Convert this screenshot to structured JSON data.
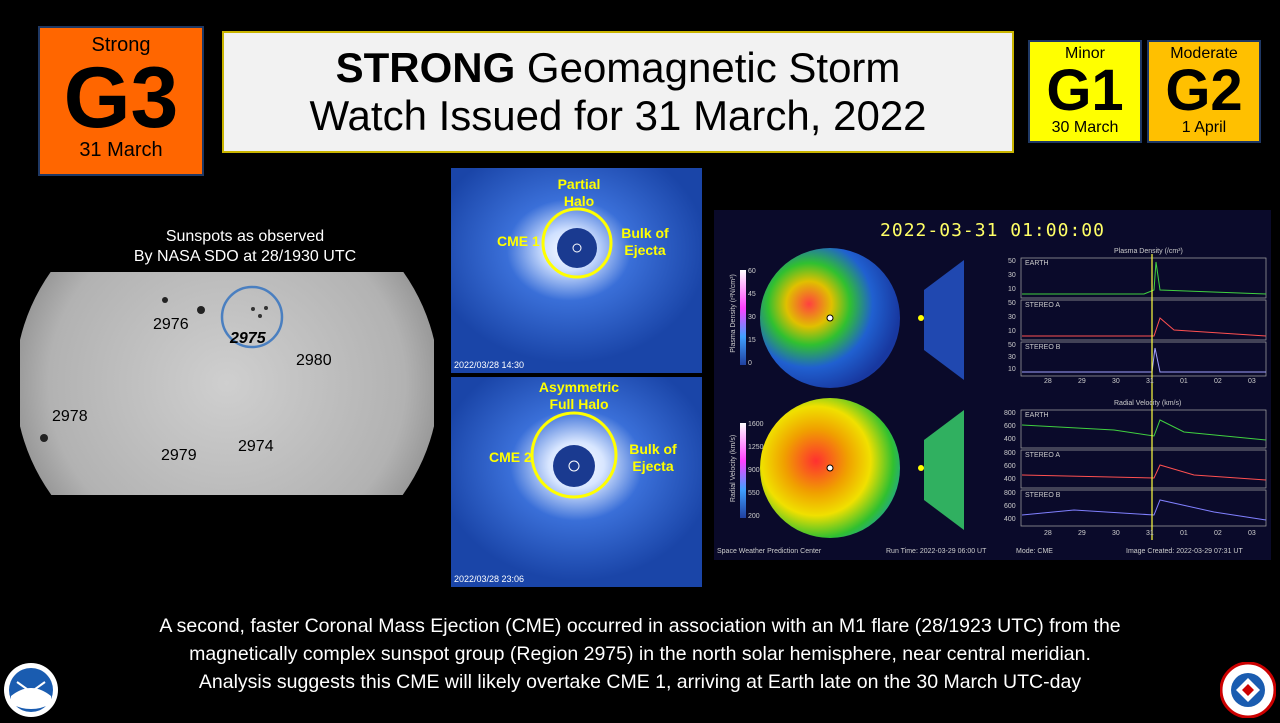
{
  "g3": {
    "level": "Strong",
    "code": "G3",
    "date": "31 March"
  },
  "title": {
    "strong": "STRONG",
    "line1_rest": " Geomagnetic Storm",
    "line2": "Watch Issued for 31 March, 2022"
  },
  "g1": {
    "level": "Minor",
    "code": "G1",
    "date": "30 March"
  },
  "g2": {
    "level": "Moderate",
    "code": "G2",
    "date": "1 April"
  },
  "sun": {
    "caption1": "Sunspots as observed",
    "caption2": "By NASA SDO at 28/1930 UTC",
    "regions": [
      "2976",
      "2975",
      "2980",
      "2978",
      "2979",
      "2974"
    ]
  },
  "coronagraph1": {
    "label_partial": "Partial",
    "label_halo": "Halo",
    "cme": "CME 1",
    "bulk1": "Bulk of",
    "bulk2": "Ejecta",
    "stamp": "2022/03/28 14:30"
  },
  "coronagraph2": {
    "label_asym": "Asymmetric",
    "label_full": "Full Halo",
    "cme": "CME 2",
    "bulk1": "Bulk of",
    "bulk2": "Ejecta",
    "stamp": "2022/03/28 23:06"
  },
  "model": {
    "time": "2022-03-31  01:00:00",
    "density_title": "Plasma Density (/cm³)",
    "velocity_title": "Radial Velocity (km/s)",
    "density_axis": "Plasma Density (r²N/cm³)",
    "velocity_axis": "Radial Velocity (km/s)",
    "density_scale": [
      "60",
      "45",
      "30",
      "15",
      "0"
    ],
    "velocity_scale": [
      "1600",
      "1250",
      "900",
      "550",
      "200"
    ],
    "d_earth_ticks": [
      "50",
      "30",
      "10"
    ],
    "d_stereo_ticks": [
      "50",
      "30",
      "10"
    ],
    "v_ticks": [
      "800",
      "600",
      "400"
    ],
    "earth": "EARTH",
    "stereo_a": "STEREO A",
    "stereo_b": "STEREO B",
    "dates": [
      "28",
      "29",
      "30",
      "31",
      "01",
      "02",
      "03"
    ],
    "swpc": "Space Weather Prediction Center",
    "run_time": "Run Time: 2022-03-29 06:00 UT",
    "mode": "Mode: CME",
    "created": "Image Created: 2022-03-29 07:31 UT"
  },
  "footer": {
    "line1": "A second, faster Coronal Mass Ejection (CME) occurred in association with an M1 flare (28/1923 UTC) from the",
    "line2": "magnetically complex sunspot group (Region 2975) in the north solar hemisphere, near central meridian.",
    "line3": "Analysis suggests this CME will likely overtake CME 1, arriving at Earth late on the 30 March UTC-day"
  },
  "logos": {
    "left": "NOAA",
    "right": "NATIONAL WEATHER SERVICE"
  }
}
